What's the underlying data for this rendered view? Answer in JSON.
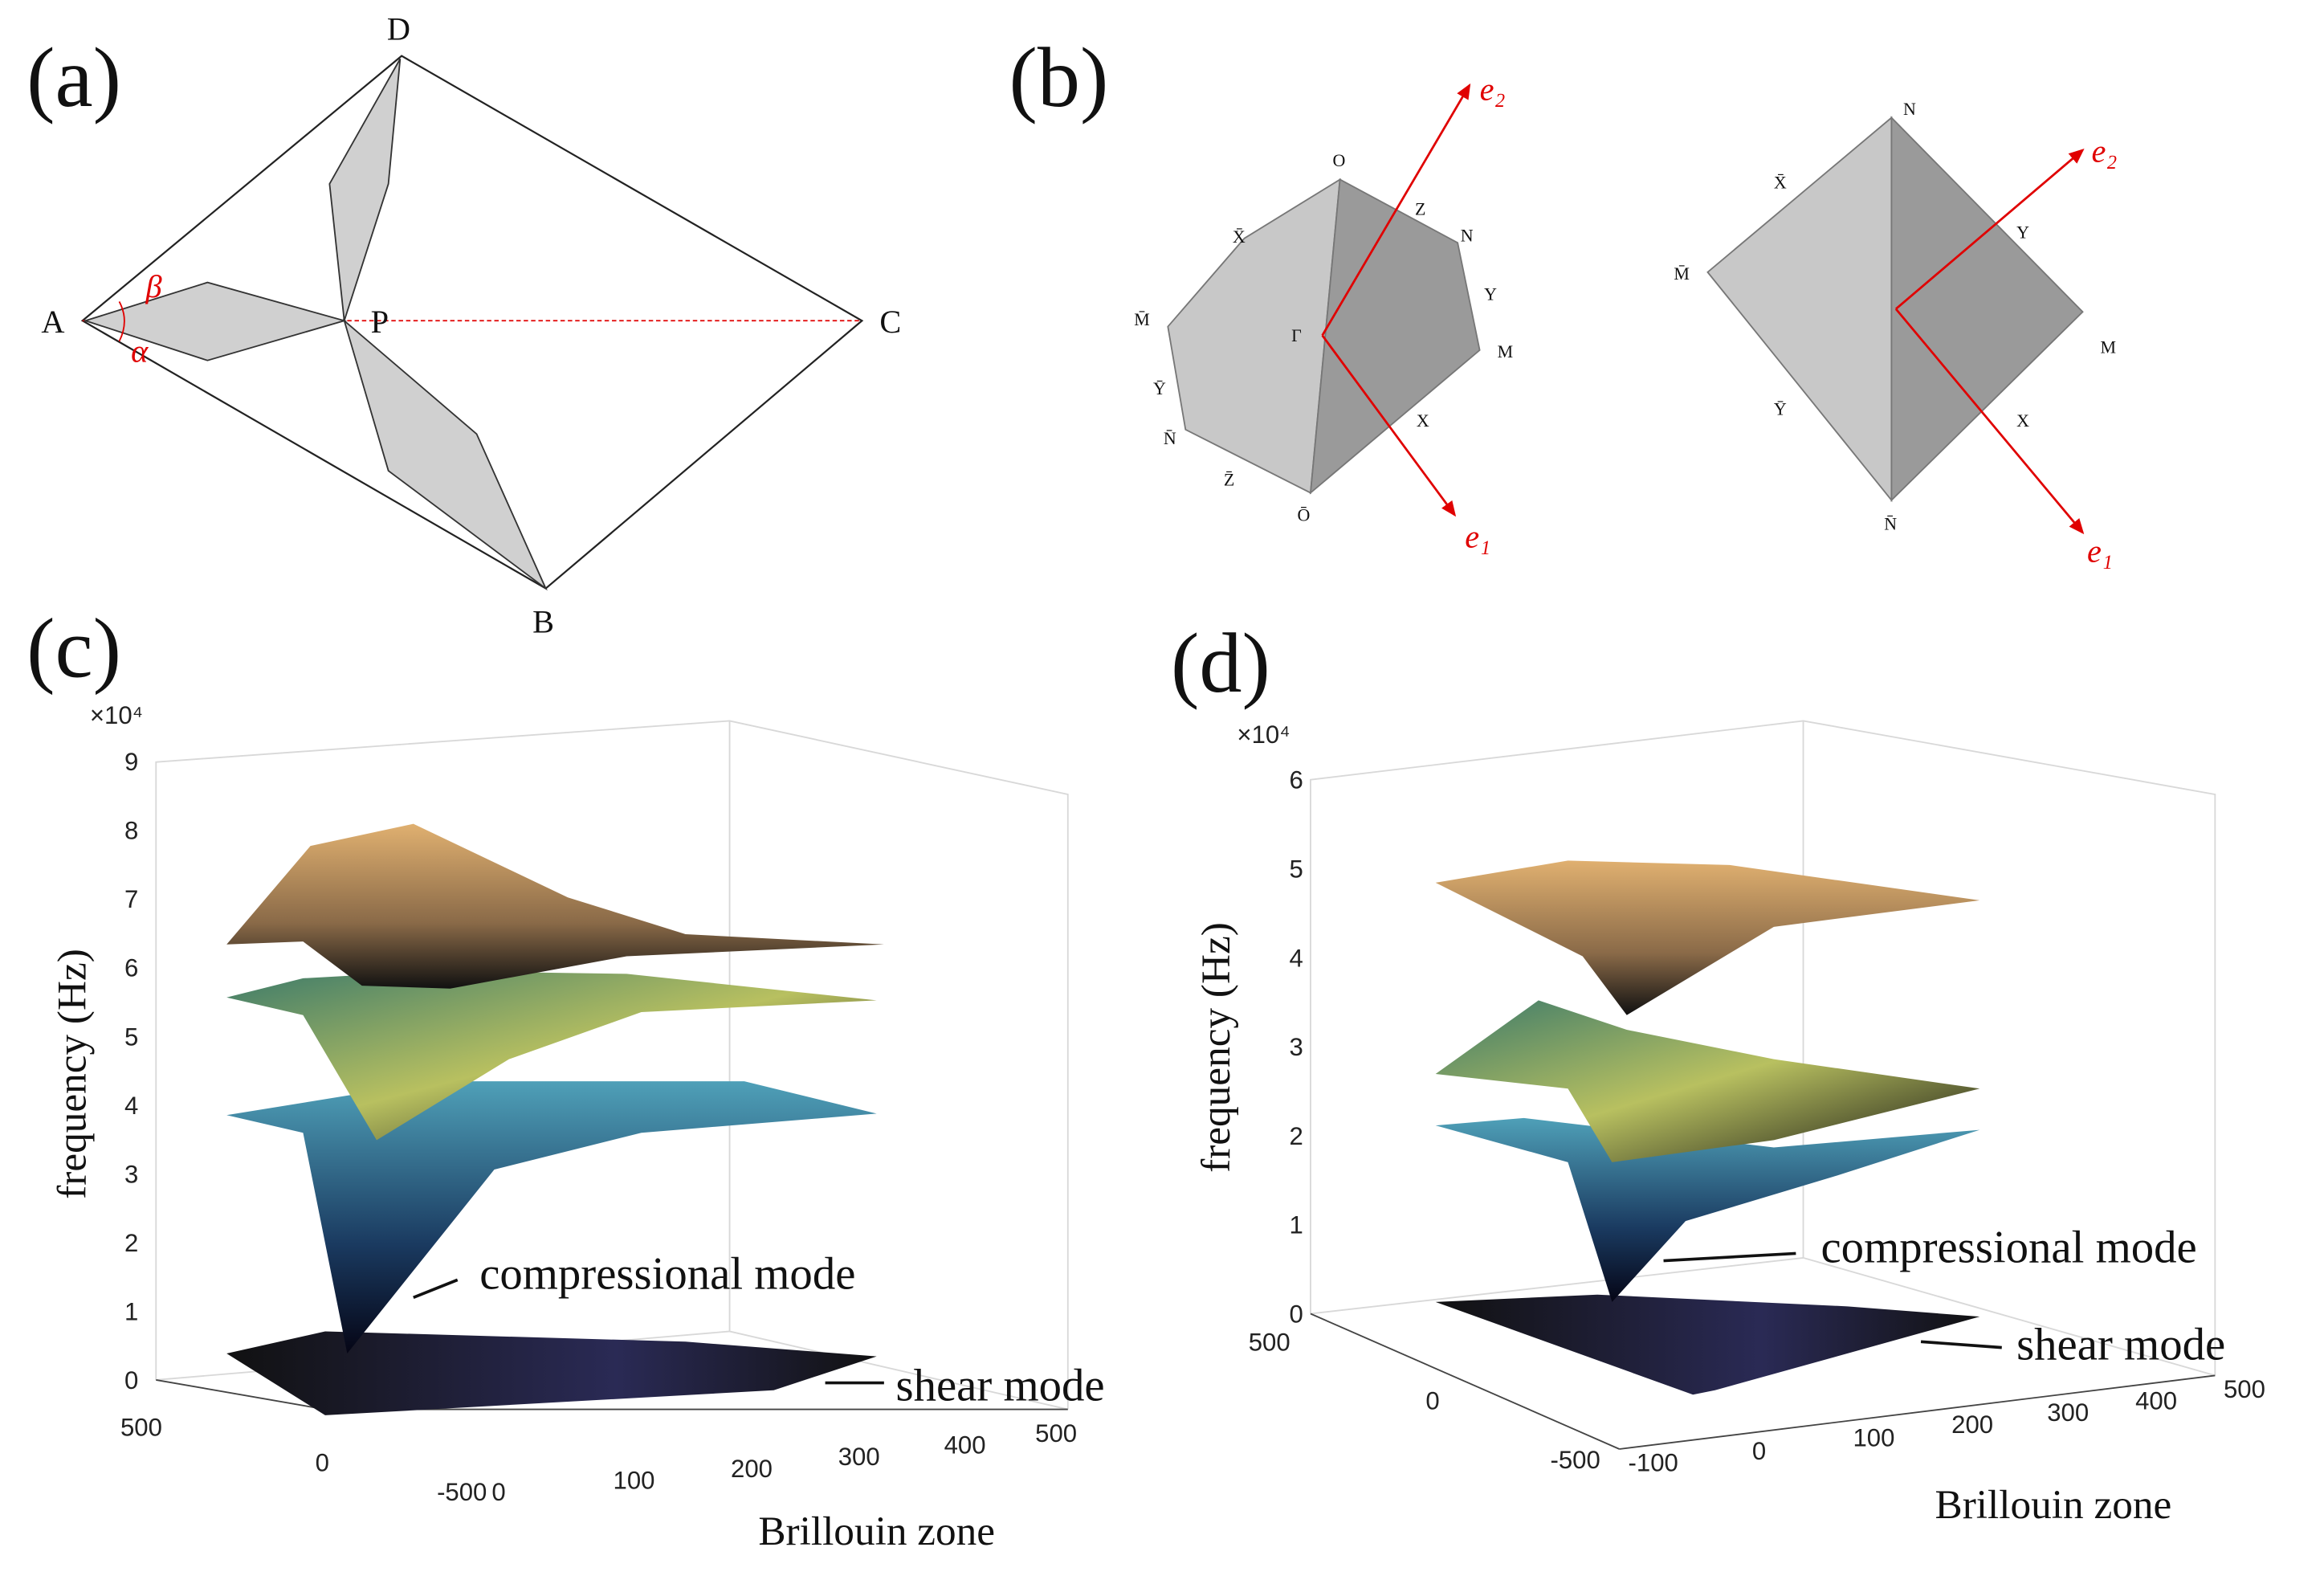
{
  "panel_a": {
    "label": "(a)",
    "points": {
      "A": "A",
      "B": "B",
      "C": "C",
      "D": "D",
      "P": "P"
    },
    "angles": {
      "beta": "β",
      "alpha": "α"
    }
  },
  "panel_b": {
    "label": "(b)",
    "left": {
      "O": "O",
      "Z": "Z",
      "N": "N",
      "Y": "Y",
      "M": "M",
      "X": "X",
      "Gamma": "Γ",
      "Xbar": "X̄",
      "Mbar": "M̄",
      "Ybar": "Ȳ",
      "Nbar": "N̄",
      "Zbar": "Z̄",
      "Obar": "Ō",
      "e2": "e₂",
      "e1": "e₁"
    },
    "right": {
      "N": "N",
      "Xbar": "X̄",
      "Mbar": "M̄",
      "Ybar": "Ȳ",
      "Nbar": "N̄",
      "Y": "Y",
      "M": "M",
      "X": "X",
      "e2": "e₂",
      "e1": "e₁"
    }
  },
  "panel_c": {
    "label": "(c)",
    "multiplier": "×10⁴",
    "y_label": "frequency (Hz)",
    "y_ticks": [
      "0",
      "1",
      "2",
      "3",
      "4",
      "5",
      "6",
      "7",
      "8",
      "9"
    ],
    "x_ticks_left": [
      "500",
      "0",
      "-500"
    ],
    "x_ticks_right": [
      "0",
      "100",
      "200",
      "300",
      "400",
      "500"
    ],
    "x_label": "Brillouin zone",
    "annotations": [
      "compressional mode",
      "shear mode"
    ]
  },
  "panel_d": {
    "label": "(d)",
    "multiplier": "×10⁴",
    "y_label": "frequency (Hz)",
    "y_ticks": [
      "0",
      "1",
      "2",
      "3",
      "4",
      "5",
      "6"
    ],
    "x_ticks_left": [
      "500",
      "0",
      "-500"
    ],
    "x_ticks_right": [
      "-100",
      "0",
      "100",
      "200",
      "300",
      "400",
      "500"
    ],
    "x_label": "Brillouin zone",
    "annotations": [
      "compressional mode",
      "shear mode"
    ]
  }
}
